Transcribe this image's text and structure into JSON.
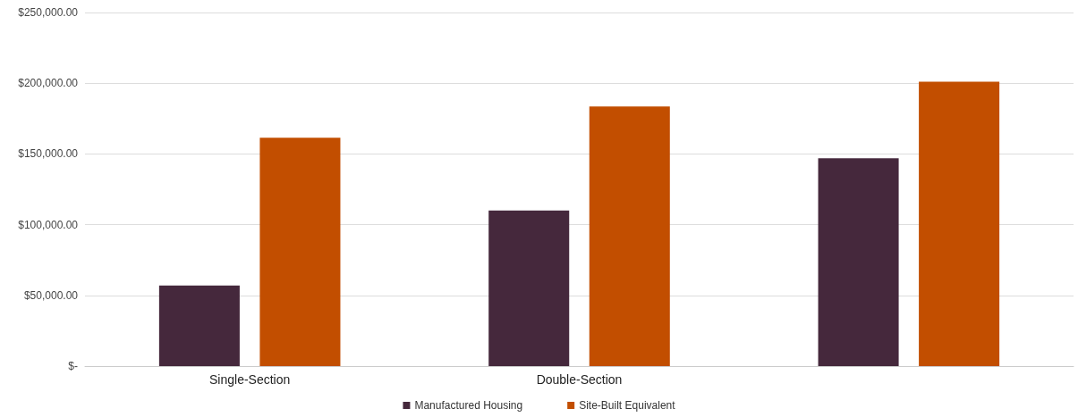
{
  "chart_data": {
    "type": "bar",
    "categories": [
      "Single-Section",
      "Double-Section",
      null
    ],
    "series": [
      {
        "name": "Manufactured Housing",
        "color": "#45283c",
        "values": [
          57000,
          110000,
          147000
        ]
      },
      {
        "name": "Site-Built Equivalent",
        "color": "#c24e00",
        "values": [
          161500,
          183500,
          201000
        ]
      }
    ],
    "ylim": [
      0,
      250000
    ],
    "yticks": [
      {
        "value": 0,
        "label": "$-"
      },
      {
        "value": 50000,
        "label": "$50,000.00"
      },
      {
        "value": 100000,
        "label": "$100,000.00"
      },
      {
        "value": 150000,
        "label": "$150,000.00"
      },
      {
        "value": 200000,
        "label": "$200,000.00"
      },
      {
        "value": 250000,
        "label": "$250,000.00"
      }
    ],
    "grid": "y",
    "legend": "bottom"
  }
}
